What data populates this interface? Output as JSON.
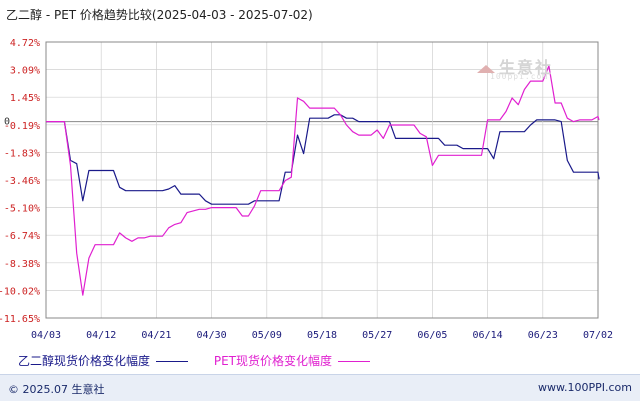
{
  "title": "乙二醇 - PET 价格趋势比较(2025-04-03 - 2025-07-02)",
  "watermark": "生意社",
  "watermark_sub": "100ppi.com",
  "footer": {
    "copyright": "© 2025.07 生意社",
    "url": "www.100PPI.com"
  },
  "colors": {
    "eg": "#1a1a8a",
    "pet": "#e020d0",
    "grid": "#d0d0d0",
    "axis_text": "#cc2222"
  },
  "chart_data": {
    "type": "line",
    "title": "乙二醇 - PET 价格趋势比较(2025-04-03 - 2025-07-02)",
    "ylim": [
      -11.65,
      4.72
    ],
    "y_ticks": [
      "4.72%",
      "3.09%",
      "1.45%",
      "-0.19%",
      "-1.83%",
      "-3.46%",
      "-5.10%",
      "-6.74%",
      "-8.38%",
      "-10.02%",
      "-11.65%"
    ],
    "zero_label": "0",
    "x_ticks": [
      "04/03",
      "04/12",
      "04/21",
      "04/30",
      "05/09",
      "05/18",
      "05/27",
      "06/05",
      "06/14",
      "06/23",
      "07/02"
    ],
    "grid": true,
    "legend_placement": "bottom",
    "series": [
      {
        "name": "乙二醇现货价格变化幅度",
        "color": "#1a1a8a",
        "points": [
          [
            "04/03",
            0
          ],
          [
            "04/04",
            0
          ],
          [
            "04/05",
            0
          ],
          [
            "04/06",
            0
          ],
          [
            "04/07",
            -2.3
          ],
          [
            "04/08",
            -2.5
          ],
          [
            "04/09",
            -4.7
          ],
          [
            "04/10",
            -2.9
          ],
          [
            "04/11",
            -2.9
          ],
          [
            "04/12",
            -2.9
          ],
          [
            "04/13",
            -2.9
          ],
          [
            "04/14",
            -2.9
          ],
          [
            "04/15",
            -3.9
          ],
          [
            "04/16",
            -4.1
          ],
          [
            "04/17",
            -4.1
          ],
          [
            "04/18",
            -4.1
          ],
          [
            "04/19",
            -4.1
          ],
          [
            "04/20",
            -4.1
          ],
          [
            "04/21",
            -4.1
          ],
          [
            "04/22",
            -4.1
          ],
          [
            "04/23",
            -4.0
          ],
          [
            "04/24",
            -3.8
          ],
          [
            "04/25",
            -4.3
          ],
          [
            "04/26",
            -4.3
          ],
          [
            "04/27",
            -4.3
          ],
          [
            "04/28",
            -4.3
          ],
          [
            "04/29",
            -4.7
          ],
          [
            "04/30",
            -4.9
          ],
          [
            "05/01",
            -4.9
          ],
          [
            "05/02",
            -4.9
          ],
          [
            "05/03",
            -4.9
          ],
          [
            "05/04",
            -4.9
          ],
          [
            "05/05",
            -4.9
          ],
          [
            "05/06",
            -4.9
          ],
          [
            "05/07",
            -4.7
          ],
          [
            "05/08",
            -4.7
          ],
          [
            "05/09",
            -4.7
          ],
          [
            "05/10",
            -4.7
          ],
          [
            "05/11",
            -4.7
          ],
          [
            "05/12",
            -3.0
          ],
          [
            "05/13",
            -3.0
          ],
          [
            "05/14",
            -0.8
          ],
          [
            "05/15",
            -1.9
          ],
          [
            "05/16",
            0.2
          ],
          [
            "05/17",
            0.2
          ],
          [
            "05/18",
            0.2
          ],
          [
            "05/19",
            0.2
          ],
          [
            "05/20",
            0.4
          ],
          [
            "05/21",
            0.4
          ],
          [
            "05/22",
            0.2
          ],
          [
            "05/23",
            0.2
          ],
          [
            "05/24",
            0.0
          ],
          [
            "05/25",
            0.0
          ],
          [
            "05/26",
            0.0
          ],
          [
            "05/27",
            0.0
          ],
          [
            "05/28",
            0.0
          ],
          [
            "05/29",
            0.0
          ],
          [
            "05/30",
            -1.0
          ],
          [
            "05/31",
            -1.0
          ],
          [
            "06/01",
            -1.0
          ],
          [
            "06/02",
            -1.0
          ],
          [
            "06/03",
            -1.0
          ],
          [
            "06/04",
            -1.0
          ],
          [
            "06/05",
            -1.0
          ],
          [
            "06/06",
            -1.0
          ],
          [
            "06/07",
            -1.4
          ],
          [
            "06/08",
            -1.4
          ],
          [
            "06/09",
            -1.4
          ],
          [
            "06/10",
            -1.6
          ],
          [
            "06/11",
            -1.6
          ],
          [
            "06/12",
            -1.6
          ],
          [
            "06/13",
            -1.6
          ],
          [
            "06/14",
            -1.6
          ],
          [
            "06/15",
            -2.2
          ],
          [
            "06/16",
            -0.6
          ],
          [
            "06/17",
            -0.6
          ],
          [
            "06/18",
            -0.6
          ],
          [
            "06/19",
            -0.6
          ],
          [
            "06/20",
            -0.6
          ],
          [
            "06/21",
            -0.2
          ],
          [
            "06/22",
            0.1
          ],
          [
            "06/23",
            0.1
          ],
          [
            "06/24",
            0.1
          ],
          [
            "06/25",
            0.1
          ],
          [
            "06/26",
            0.0
          ],
          [
            "06/27",
            -2.3
          ],
          [
            "06/28",
            -3.0
          ],
          [
            "06/29",
            -3.0
          ],
          [
            "06/30",
            -3.0
          ],
          [
            "07/01",
            -3.0
          ],
          [
            "07/02",
            -3.0
          ],
          [
            "07/03",
            -3.4
          ],
          [
            "07/04",
            -3.3
          ]
        ]
      },
      {
        "name": "PET现货价格变化幅度",
        "color": "#e020d0",
        "points": [
          [
            "04/03",
            0
          ],
          [
            "04/04",
            0
          ],
          [
            "04/05",
            0
          ],
          [
            "04/06",
            0
          ],
          [
            "04/07",
            -2.6
          ],
          [
            "04/08",
            -7.8
          ],
          [
            "04/09",
            -10.3
          ],
          [
            "04/10",
            -8.1
          ],
          [
            "04/11",
            -7.3
          ],
          [
            "04/12",
            -7.3
          ],
          [
            "04/13",
            -7.3
          ],
          [
            "04/14",
            -7.3
          ],
          [
            "04/15",
            -6.6
          ],
          [
            "04/16",
            -6.9
          ],
          [
            "04/17",
            -7.1
          ],
          [
            "04/18",
            -6.9
          ],
          [
            "04/19",
            -6.9
          ],
          [
            "04/20",
            -6.8
          ],
          [
            "04/21",
            -6.8
          ],
          [
            "04/22",
            -6.8
          ],
          [
            "04/23",
            -6.3
          ],
          [
            "04/24",
            -6.1
          ],
          [
            "04/25",
            -6.0
          ],
          [
            "04/26",
            -5.4
          ],
          [
            "04/27",
            -5.3
          ],
          [
            "04/28",
            -5.2
          ],
          [
            "04/29",
            -5.2
          ],
          [
            "04/30",
            -5.1
          ],
          [
            "05/01",
            -5.1
          ],
          [
            "05/02",
            -5.1
          ],
          [
            "05/03",
            -5.1
          ],
          [
            "05/04",
            -5.1
          ],
          [
            "05/05",
            -5.6
          ],
          [
            "05/06",
            -5.6
          ],
          [
            "05/07",
            -5.0
          ],
          [
            "05/08",
            -4.1
          ],
          [
            "05/09",
            -4.1
          ],
          [
            "05/10",
            -4.1
          ],
          [
            "05/11",
            -4.1
          ],
          [
            "05/12",
            -3.5
          ],
          [
            "05/13",
            -3.3
          ],
          [
            "05/14",
            1.4
          ],
          [
            "05/15",
            1.2
          ],
          [
            "05/16",
            0.8
          ],
          [
            "05/17",
            0.8
          ],
          [
            "05/18",
            0.8
          ],
          [
            "05/19",
            0.8
          ],
          [
            "05/20",
            0.8
          ],
          [
            "05/21",
            0.4
          ],
          [
            "05/22",
            -0.2
          ],
          [
            "05/23",
            -0.6
          ],
          [
            "05/24",
            -0.8
          ],
          [
            "05/25",
            -0.8
          ],
          [
            "05/26",
            -0.8
          ],
          [
            "05/27",
            -0.5
          ],
          [
            "05/28",
            -1.0
          ],
          [
            "05/29",
            -0.2
          ],
          [
            "05/30",
            -0.2
          ],
          [
            "05/31",
            -0.2
          ],
          [
            "06/01",
            -0.2
          ],
          [
            "06/02",
            -0.2
          ],
          [
            "06/03",
            -0.7
          ],
          [
            "06/04",
            -0.9
          ],
          [
            "06/05",
            -2.6
          ],
          [
            "06/06",
            -2.0
          ],
          [
            "06/07",
            -2.0
          ],
          [
            "06/08",
            -2.0
          ],
          [
            "06/09",
            -2.0
          ],
          [
            "06/10",
            -2.0
          ],
          [
            "06/11",
            -2.0
          ],
          [
            "06/12",
            -2.0
          ],
          [
            "06/13",
            -2.0
          ],
          [
            "06/14",
            0.1
          ],
          [
            "06/15",
            0.1
          ],
          [
            "06/16",
            0.1
          ],
          [
            "06/17",
            0.6
          ],
          [
            "06/18",
            1.4
          ],
          [
            "06/19",
            1.0
          ],
          [
            "06/20",
            1.9
          ],
          [
            "06/21",
            2.4
          ],
          [
            "06/22",
            2.4
          ],
          [
            "06/23",
            2.4
          ],
          [
            "06/24",
            3.3
          ],
          [
            "06/25",
            1.1
          ],
          [
            "06/26",
            1.1
          ],
          [
            "06/27",
            0.2
          ],
          [
            "06/28",
            0.0
          ],
          [
            "06/29",
            0.1
          ],
          [
            "06/30",
            0.1
          ],
          [
            "07/01",
            0.1
          ],
          [
            "07/02",
            0.3
          ],
          [
            "07/03",
            0.1
          ],
          [
            "07/04",
            0.1
          ]
        ]
      }
    ]
  }
}
